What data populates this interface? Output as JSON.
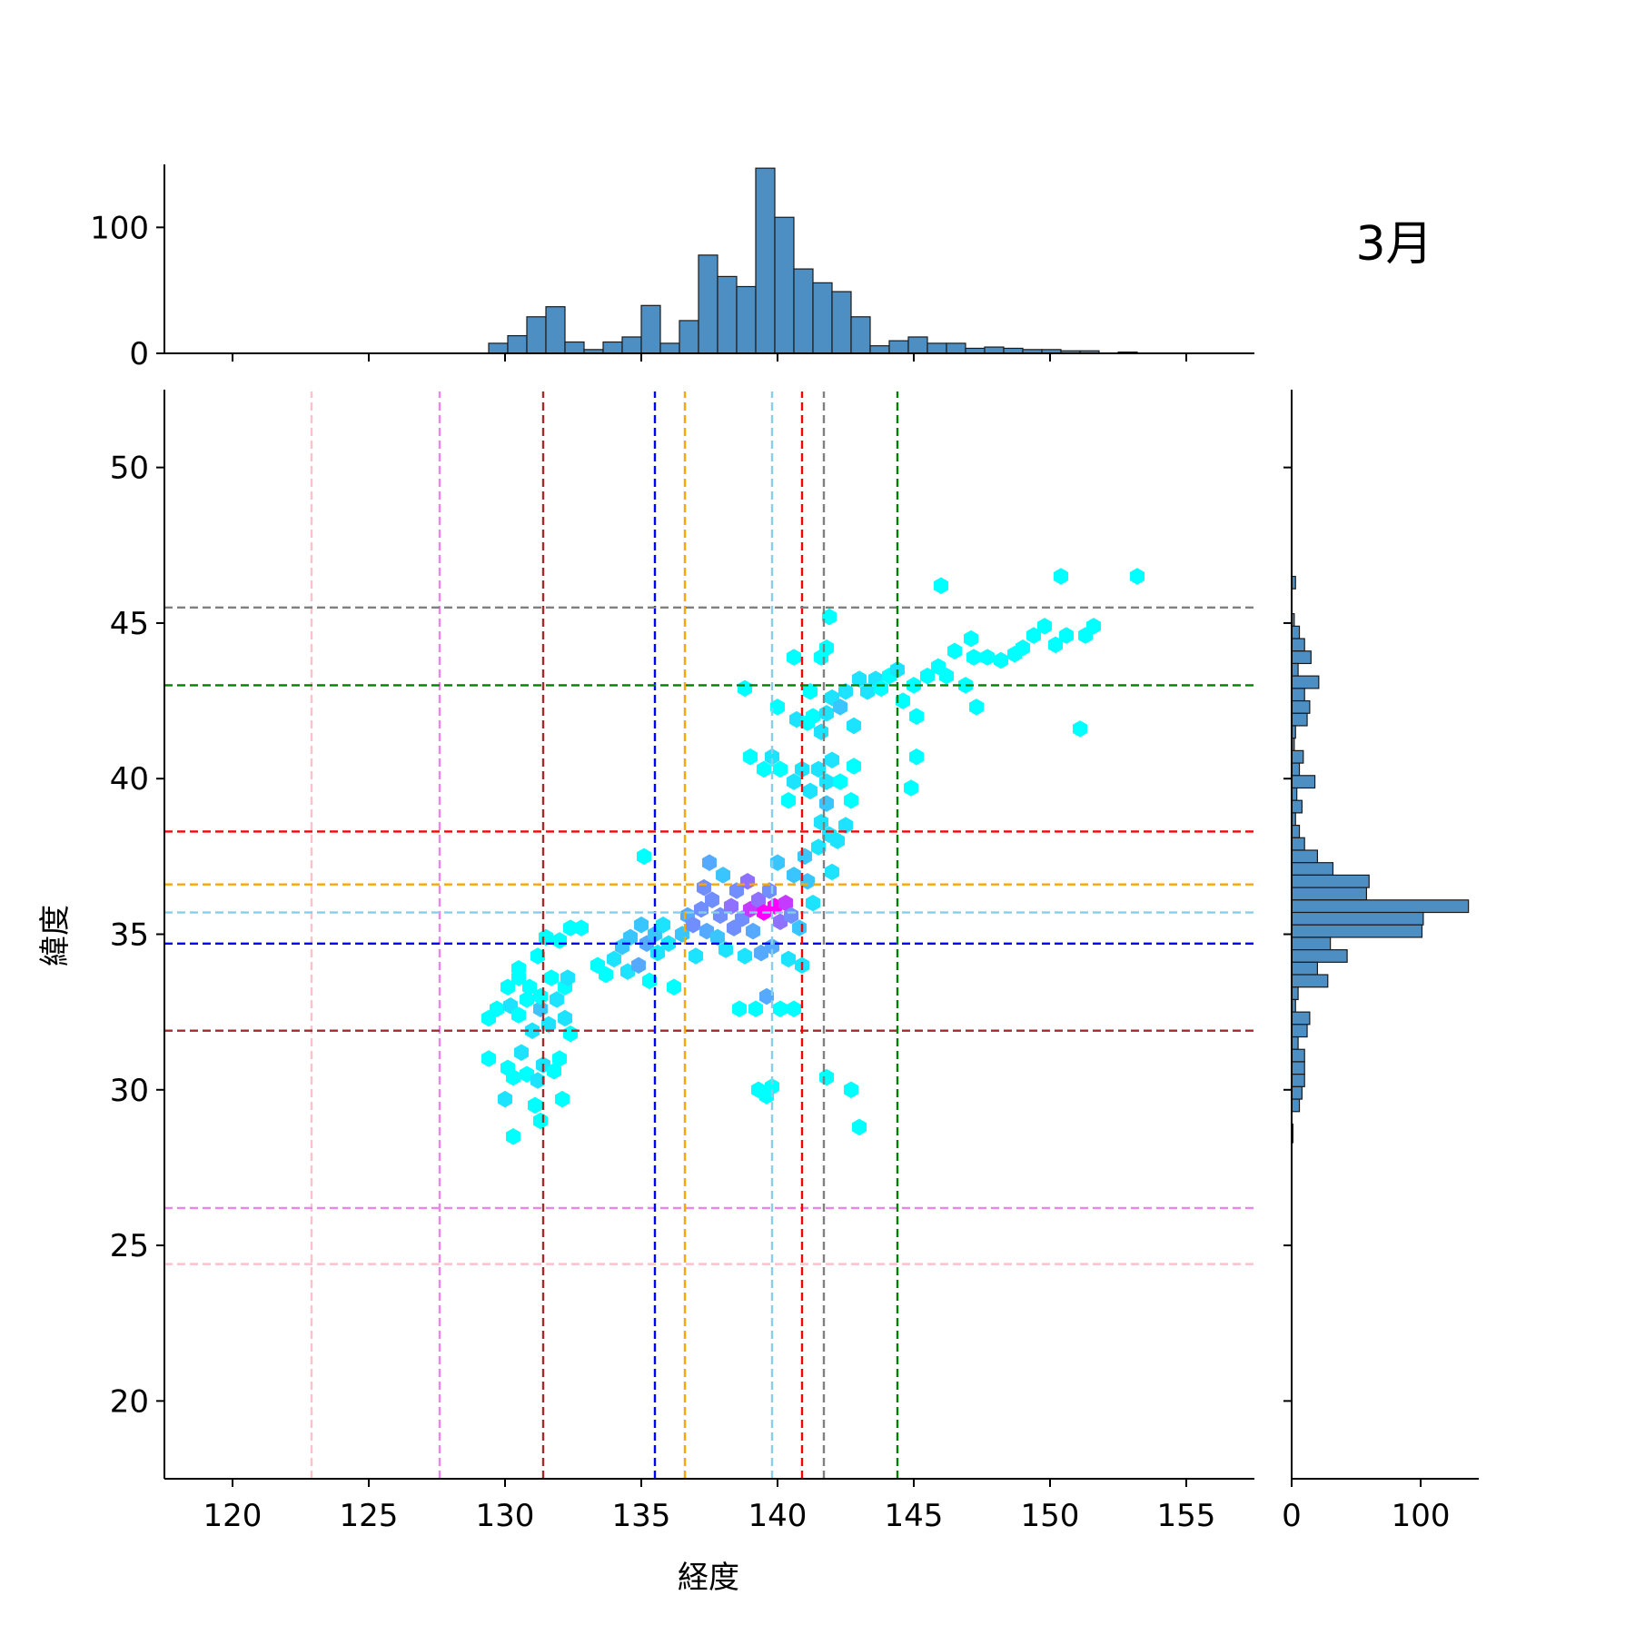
{
  "chart_data": {
    "type": "joint_hexbin_histogram",
    "annotation": "3月",
    "xlabel": "経度",
    "ylabel": "緯度",
    "xlim": [
      117.5,
      157.5
    ],
    "ylim": [
      17.5,
      52.5
    ],
    "x_ticks": [
      120,
      125,
      130,
      135,
      140,
      145,
      150,
      155
    ],
    "y_ticks": [
      20,
      25,
      30,
      35,
      40,
      45,
      50
    ],
    "marginal_x": {
      "ticks": [
        0,
        100
      ],
      "ylim": [
        0,
        150
      ],
      "bin_start": 129.4,
      "bin_width": 0.7,
      "counts": [
        8,
        14,
        29,
        37,
        9,
        3,
        9,
        13,
        38,
        8,
        26,
        78,
        61,
        53,
        147,
        108,
        67,
        56,
        49,
        29,
        6,
        10,
        13,
        8,
        8,
        4,
        5,
        4,
        3,
        3,
        2,
        2,
        0,
        1,
        0
      ]
    },
    "marginal_y": {
      "ticks": [
        0,
        100
      ],
      "xlim": [
        0,
        145
      ],
      "bars": [
        [
          46.3,
          3
        ],
        [
          45.1,
          2
        ],
        [
          44.7,
          6
        ],
        [
          44.3,
          10
        ],
        [
          43.9,
          15
        ],
        [
          43.5,
          5
        ],
        [
          43.1,
          21
        ],
        [
          42.7,
          10
        ],
        [
          42.3,
          14
        ],
        [
          41.9,
          12
        ],
        [
          41.5,
          3
        ],
        [
          41.1,
          2
        ],
        [
          40.7,
          9
        ],
        [
          40.3,
          6
        ],
        [
          39.9,
          18
        ],
        [
          39.5,
          4
        ],
        [
          39.1,
          8
        ],
        [
          38.7,
          3
        ],
        [
          38.3,
          6
        ],
        [
          37.9,
          10
        ],
        [
          37.5,
          20
        ],
        [
          37.1,
          32
        ],
        [
          36.7,
          60
        ],
        [
          36.3,
          58
        ],
        [
          35.9,
          137
        ],
        [
          35.5,
          102
        ],
        [
          35.1,
          101
        ],
        [
          34.7,
          30
        ],
        [
          34.3,
          43
        ],
        [
          33.9,
          20
        ],
        [
          33.5,
          28
        ],
        [
          33.1,
          5
        ],
        [
          32.7,
          3
        ],
        [
          32.3,
          14
        ],
        [
          31.9,
          12
        ],
        [
          31.5,
          5
        ],
        [
          31.1,
          10
        ],
        [
          30.7,
          10
        ],
        [
          30.3,
          10
        ],
        [
          29.9,
          8
        ],
        [
          29.5,
          6
        ],
        [
          28.7,
          1
        ],
        [
          28.5,
          1
        ]
      ]
    },
    "reference_lines": [
      {
        "color": "#ffc0cb",
        "x": 122.9,
        "y": 24.4
      },
      {
        "color": "#ee82ee",
        "x": 127.6,
        "y": 26.2
      },
      {
        "color": "#a52a2a",
        "x": 131.4,
        "y": 31.9
      },
      {
        "color": "#0000ff",
        "x": 135.5,
        "y": 34.7
      },
      {
        "color": "#ffa500",
        "x": 136.6,
        "y": 36.6
      },
      {
        "color": "#87ceeb",
        "x": 139.8,
        "y": 35.7
      },
      {
        "color": "#ff0000",
        "x": 140.9,
        "y": 38.3
      },
      {
        "color": "#808080",
        "x": 141.7,
        "y": 45.5
      },
      {
        "color": "#008000",
        "x": 144.4,
        "y": 43.0
      }
    ],
    "hexbin": {
      "colormap": [
        "#00ffff",
        "#ff00ff"
      ],
      "points": [
        [
          130.3,
          28.5,
          1
        ],
        [
          143.0,
          28.8,
          1
        ],
        [
          130.0,
          29.7,
          2
        ],
        [
          131.1,
          29.5,
          1
        ],
        [
          131.3,
          29.0,
          1
        ],
        [
          132.1,
          29.7,
          1
        ],
        [
          139.3,
          30.0,
          1
        ],
        [
          139.6,
          29.8,
          1
        ],
        [
          139.8,
          30.1,
          1
        ],
        [
          141.8,
          30.4,
          1
        ],
        [
          142.7,
          30.0,
          1
        ],
        [
          129.4,
          31.0,
          1
        ],
        [
          130.1,
          30.7,
          1
        ],
        [
          130.3,
          30.4,
          1
        ],
        [
          130.6,
          31.2,
          2
        ],
        [
          130.8,
          30.5,
          1
        ],
        [
          131.2,
          30.3,
          2
        ],
        [
          131.4,
          30.8,
          2
        ],
        [
          131.8,
          30.6,
          1
        ],
        [
          132.0,
          31.0,
          1
        ],
        [
          129.4,
          32.3,
          1
        ],
        [
          129.7,
          32.6,
          1
        ],
        [
          130.2,
          32.7,
          2
        ],
        [
          130.5,
          32.4,
          1
        ],
        [
          130.8,
          32.9,
          1
        ],
        [
          131.0,
          31.9,
          2
        ],
        [
          131.3,
          32.6,
          3
        ],
        [
          131.6,
          32.1,
          2
        ],
        [
          131.9,
          32.9,
          2
        ],
        [
          132.2,
          32.3,
          2
        ],
        [
          132.4,
          31.8,
          1
        ],
        [
          130.1,
          33.3,
          1
        ],
        [
          130.5,
          33.6,
          1
        ],
        [
          130.9,
          33.3,
          1
        ],
        [
          131.3,
          33.0,
          1
        ],
        [
          131.7,
          33.6,
          1
        ],
        [
          132.2,
          33.3,
          1
        ],
        [
          132.3,
          33.6,
          2
        ],
        [
          130.5,
          33.9,
          1
        ],
        [
          131.2,
          34.3,
          1
        ],
        [
          131.5,
          34.9,
          1
        ],
        [
          132.0,
          34.8,
          1
        ],
        [
          132.4,
          35.2,
          1
        ],
        [
          132.8,
          35.2,
          1
        ],
        [
          133.4,
          34.0,
          1
        ],
        [
          133.7,
          33.7,
          1
        ],
        [
          134.0,
          34.2,
          2
        ],
        [
          134.3,
          34.6,
          3
        ],
        [
          134.5,
          33.8,
          2
        ],
        [
          134.6,
          34.9,
          3
        ],
        [
          134.9,
          34.0,
          4
        ],
        [
          135.0,
          35.3,
          3
        ],
        [
          135.2,
          34.7,
          4
        ],
        [
          135.3,
          33.5,
          1
        ],
        [
          135.5,
          35.0,
          3
        ],
        [
          135.6,
          34.4,
          2
        ],
        [
          135.8,
          35.3,
          2
        ],
        [
          136.0,
          34.7,
          2
        ],
        [
          135.1,
          37.5,
          1
        ],
        [
          136.2,
          33.3,
          1
        ],
        [
          136.5,
          35.0,
          3
        ],
        [
          136.7,
          35.6,
          4
        ],
        [
          136.9,
          35.3,
          5
        ],
        [
          137.0,
          34.3,
          2
        ],
        [
          137.2,
          35.8,
          5
        ],
        [
          137.3,
          36.5,
          5
        ],
        [
          137.4,
          35.1,
          4
        ],
        [
          137.5,
          37.3,
          4
        ],
        [
          137.6,
          36.1,
          5
        ],
        [
          137.8,
          34.9,
          3
        ],
        [
          137.9,
          35.6,
          5
        ],
        [
          138.0,
          36.9,
          3
        ],
        [
          138.1,
          34.5,
          2
        ],
        [
          138.3,
          35.9,
          6
        ],
        [
          138.4,
          35.2,
          5
        ],
        [
          138.5,
          36.4,
          5
        ],
        [
          138.6,
          32.6,
          1
        ],
        [
          138.7,
          35.5,
          5
        ],
        [
          138.8,
          34.3,
          2
        ],
        [
          138.9,
          36.7,
          6
        ],
        [
          139.0,
          35.8,
          8
        ],
        [
          139.1,
          35.1,
          4
        ],
        [
          139.2,
          32.6,
          1
        ],
        [
          139.3,
          36.1,
          6
        ],
        [
          139.4,
          34.4,
          4
        ],
        [
          139.5,
          35.7,
          10
        ],
        [
          139.6,
          33.0,
          4
        ],
        [
          139.7,
          36.4,
          5
        ],
        [
          139.8,
          34.6,
          4
        ],
        [
          139.9,
          35.9,
          10
        ],
        [
          140.0,
          37.3,
          3
        ],
        [
          140.1,
          35.4,
          6
        ],
        [
          140.1,
          32.6,
          1
        ],
        [
          140.3,
          36.0,
          8
        ],
        [
          140.4,
          34.2,
          2
        ],
        [
          140.5,
          35.6,
          5
        ],
        [
          140.6,
          36.9,
          3
        ],
        [
          140.6,
          32.6,
          1
        ],
        [
          140.8,
          35.2,
          3
        ],
        [
          140.9,
          34.0,
          2
        ],
        [
          141.0,
          37.5,
          3
        ],
        [
          141.1,
          36.7,
          3
        ],
        [
          141.3,
          36.0,
          2
        ],
        [
          141.5,
          37.8,
          2
        ],
        [
          141.6,
          38.6,
          2
        ],
        [
          141.8,
          39.2,
          3
        ],
        [
          141.9,
          38.2,
          2
        ],
        [
          142.0,
          37.0,
          2
        ],
        [
          142.2,
          38.0,
          2
        ],
        [
          142.5,
          38.5,
          2
        ],
        [
          139.0,
          40.7,
          1
        ],
        [
          139.5,
          40.3,
          1
        ],
        [
          139.8,
          40.7,
          2
        ],
        [
          140.1,
          40.3,
          1
        ],
        [
          140.4,
          39.3,
          1
        ],
        [
          140.6,
          39.9,
          2
        ],
        [
          140.9,
          40.3,
          2
        ],
        [
          141.2,
          39.6,
          2
        ],
        [
          141.5,
          40.3,
          2
        ],
        [
          141.8,
          39.9,
          2
        ],
        [
          142.0,
          40.6,
          2
        ],
        [
          142.3,
          39.9,
          1
        ],
        [
          142.7,
          39.3,
          1
        ],
        [
          142.8,
          40.4,
          1
        ],
        [
          140.0,
          42.3,
          1
        ],
        [
          140.7,
          41.9,
          2
        ],
        [
          141.1,
          41.8,
          1
        ],
        [
          141.3,
          42.0,
          1
        ],
        [
          141.6,
          41.5,
          2
        ],
        [
          141.8,
          42.1,
          2
        ],
        [
          142.0,
          42.6,
          2
        ],
        [
          142.3,
          42.3,
          3
        ],
        [
          142.5,
          42.8,
          2
        ],
        [
          142.8,
          41.7,
          2
        ],
        [
          143.0,
          43.2,
          2
        ],
        [
          143.3,
          42.8,
          2
        ],
        [
          143.6,
          43.2,
          2
        ],
        [
          143.8,
          42.9,
          1
        ],
        [
          144.1,
          43.3,
          1
        ],
        [
          144.4,
          43.5,
          2
        ],
        [
          144.6,
          42.5,
          1
        ],
        [
          145.0,
          43.0,
          1
        ],
        [
          145.1,
          42.0,
          1
        ],
        [
          145.1,
          40.7,
          1
        ],
        [
          144.9,
          39.7,
          1
        ],
        [
          145.5,
          43.3,
          1
        ],
        [
          145.9,
          43.6,
          1
        ],
        [
          146.0,
          46.2,
          1
        ],
        [
          146.2,
          43.3,
          1
        ],
        [
          146.5,
          44.1,
          1
        ],
        [
          146.9,
          43.0,
          1
        ],
        [
          147.1,
          44.5,
          1
        ],
        [
          147.2,
          43.9,
          1
        ],
        [
          147.3,
          42.3,
          1
        ],
        [
          147.7,
          43.9,
          1
        ],
        [
          148.2,
          43.8,
          1
        ],
        [
          148.7,
          44.0,
          1
        ],
        [
          149.0,
          44.2,
          1
        ],
        [
          149.4,
          44.6,
          1
        ],
        [
          149.8,
          44.9,
          1
        ],
        [
          150.2,
          44.3,
          1
        ],
        [
          150.4,
          46.5,
          1
        ],
        [
          150.6,
          44.6,
          1
        ],
        [
          151.1,
          41.6,
          1
        ],
        [
          151.3,
          44.6,
          1
        ],
        [
          151.6,
          44.9,
          1
        ],
        [
          153.2,
          46.5,
          1
        ],
        [
          141.2,
          42.8,
          1
        ],
        [
          141.8,
          44.2,
          1
        ],
        [
          141.9,
          45.2,
          1
        ],
        [
          141.6,
          43.9,
          1
        ],
        [
          140.6,
          43.9,
          1
        ],
        [
          138.8,
          42.9,
          1
        ]
      ]
    }
  }
}
